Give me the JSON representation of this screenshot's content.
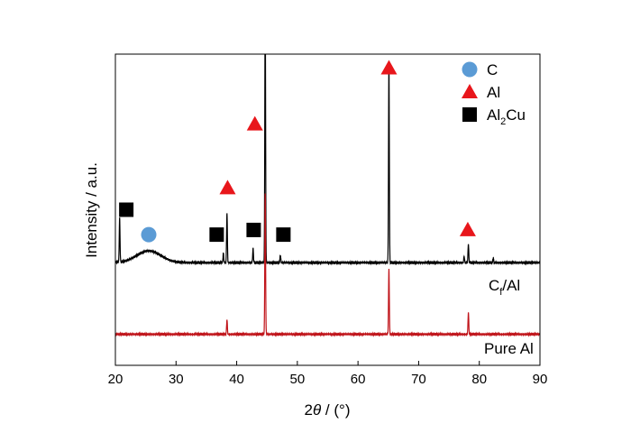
{
  "chart_data": {
    "type": "line",
    "xlabel_prefix": "2",
    "xlabel_theta": "θ",
    "xlabel_suffix": " / (°)",
    "ylabel": "Intensity / a.u.",
    "xlim": [
      20,
      90
    ],
    "xticks": [
      20,
      30,
      40,
      50,
      60,
      70,
      80,
      90
    ],
    "y_ticks_shown": false,
    "grid": false,
    "legend": {
      "placement": "top-right",
      "items": [
        {
          "symbol": "circle",
          "color": "#5b9bd5",
          "label": "C",
          "sub": "",
          "post": ""
        },
        {
          "symbol": "triangle",
          "color": "#e8161b",
          "label": "Al",
          "sub": "",
          "post": ""
        },
        {
          "symbol": "square",
          "color": "#000000",
          "label": "Al",
          "sub": "2",
          "post": "Cu"
        }
      ]
    },
    "series": [
      {
        "name_main": "C",
        "name_sub": "f",
        "name_post": "/Al",
        "color": "#000000",
        "baseline": 0.33,
        "hump": {
          "center": 25.5,
          "width": 2.8,
          "height": 0.038
        },
        "peaks": [
          {
            "x": 20.7,
            "h": 0.14
          },
          {
            "x": 37.8,
            "h": 0.03
          },
          {
            "x": 38.4,
            "h": 0.16
          },
          {
            "x": 42.7,
            "h": 0.045
          },
          {
            "x": 44.7,
            "h": 0.85
          },
          {
            "x": 47.2,
            "h": 0.025
          },
          {
            "x": 65.1,
            "h": 0.64
          },
          {
            "x": 77.5,
            "h": 0.02
          },
          {
            "x": 78.2,
            "h": 0.06
          },
          {
            "x": 82.3,
            "h": 0.015
          }
        ]
      },
      {
        "name_main": "Pure Al",
        "name_sub": "",
        "name_post": "",
        "color": "#c0141a",
        "baseline": 0.1,
        "peaks": [
          {
            "x": 38.4,
            "h": 0.047
          },
          {
            "x": 44.7,
            "h": 0.45
          },
          {
            "x": 65.1,
            "h": 0.21
          },
          {
            "x": 78.2,
            "h": 0.07
          }
        ]
      }
    ],
    "markers": [
      {
        "symbol": "square",
        "x": 21.8,
        "y": 0.5
      },
      {
        "symbol": "circle",
        "x": 25.5,
        "y": 0.42
      },
      {
        "symbol": "square",
        "x": 36.7,
        "y": 0.42
      },
      {
        "symbol": "square",
        "x": 42.8,
        "y": 0.435
      },
      {
        "symbol": "square",
        "x": 47.7,
        "y": 0.42
      },
      {
        "symbol": "triangle",
        "x": 38.5,
        "y": 0.57
      },
      {
        "symbol": "triangle",
        "x": 43.0,
        "y": 0.775
      },
      {
        "symbol": "triangle",
        "x": 65.1,
        "y": 0.955
      },
      {
        "symbol": "triangle",
        "x": 78.1,
        "y": 0.435
      }
    ]
  }
}
